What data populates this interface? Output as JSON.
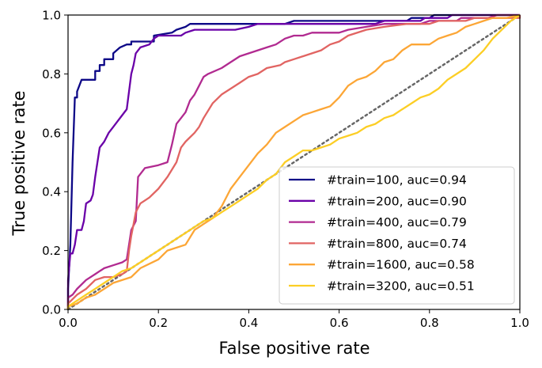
{
  "chart_data": {
    "type": "line",
    "title": "",
    "xlabel": "False positive rate",
    "ylabel": "True positive rate",
    "xlim": [
      0,
      1
    ],
    "ylim": [
      0,
      1
    ],
    "xticks": [
      "0.0",
      "0.2",
      "0.4",
      "0.6",
      "0.8",
      "1.0"
    ],
    "yticks": [
      "0.0",
      "0.2",
      "0.4",
      "0.6",
      "0.8",
      "1.0"
    ],
    "grid": false,
    "legend_position": "lower-right",
    "reference_line": {
      "name": "chance",
      "style": "dotted",
      "color": "#666666",
      "points": [
        [
          0,
          0
        ],
        [
          1,
          1
        ]
      ]
    },
    "series": [
      {
        "name": "#train=100, auc=0.94",
        "color": "#0d0887",
        "points": [
          [
            0,
            0
          ],
          [
            0,
            0.07
          ],
          [
            0.005,
            0.22
          ],
          [
            0.01,
            0.5
          ],
          [
            0.015,
            0.72
          ],
          [
            0.02,
            0.72
          ],
          [
            0.02,
            0.74
          ],
          [
            0.03,
            0.78
          ],
          [
            0.06,
            0.78
          ],
          [
            0.06,
            0.81
          ],
          [
            0.07,
            0.81
          ],
          [
            0.07,
            0.83
          ],
          [
            0.08,
            0.83
          ],
          [
            0.08,
            0.85
          ],
          [
            0.09,
            0.85
          ],
          [
            0.1,
            0.85
          ],
          [
            0.1,
            0.87
          ],
          [
            0.115,
            0.89
          ],
          [
            0.13,
            0.9
          ],
          [
            0.14,
            0.9
          ],
          [
            0.14,
            0.91
          ],
          [
            0.19,
            0.91
          ],
          [
            0.19,
            0.93
          ],
          [
            0.23,
            0.94
          ],
          [
            0.24,
            0.95
          ],
          [
            0.26,
            0.96
          ],
          [
            0.27,
            0.97
          ],
          [
            0.37,
            0.97
          ],
          [
            0.38,
            0.97
          ],
          [
            0.48,
            0.97
          ],
          [
            0.5,
            0.98
          ],
          [
            0.59,
            0.98
          ],
          [
            0.75,
            0.98
          ],
          [
            0.76,
            0.99
          ],
          [
            0.8,
            0.99
          ],
          [
            0.81,
            1
          ],
          [
            1,
            1
          ]
        ]
      },
      {
        "name": "#train=200, auc=0.90",
        "color": "#6a00a8",
        "points": [
          [
            0,
            0
          ],
          [
            0,
            0.1
          ],
          [
            0.005,
            0.19
          ],
          [
            0.01,
            0.19
          ],
          [
            0.015,
            0.22
          ],
          [
            0.02,
            0.27
          ],
          [
            0.03,
            0.27
          ],
          [
            0.035,
            0.3
          ],
          [
            0.04,
            0.36
          ],
          [
            0.05,
            0.37
          ],
          [
            0.055,
            0.39
          ],
          [
            0.06,
            0.45
          ],
          [
            0.07,
            0.55
          ],
          [
            0.08,
            0.57
          ],
          [
            0.09,
            0.6
          ],
          [
            0.1,
            0.62
          ],
          [
            0.11,
            0.64
          ],
          [
            0.12,
            0.66
          ],
          [
            0.13,
            0.68
          ],
          [
            0.14,
            0.8
          ],
          [
            0.145,
            0.83
          ],
          [
            0.15,
            0.87
          ],
          [
            0.16,
            0.89
          ],
          [
            0.18,
            0.9
          ],
          [
            0.19,
            0.92
          ],
          [
            0.2,
            0.93
          ],
          [
            0.25,
            0.93
          ],
          [
            0.26,
            0.94
          ],
          [
            0.28,
            0.95
          ],
          [
            0.37,
            0.95
          ],
          [
            0.4,
            0.96
          ],
          [
            0.42,
            0.97
          ],
          [
            0.57,
            0.97
          ],
          [
            0.68,
            0.97
          ],
          [
            0.7,
            0.98
          ],
          [
            0.78,
            0.98
          ],
          [
            0.79,
            0.99
          ],
          [
            0.84,
            0.99
          ],
          [
            0.85,
            1
          ],
          [
            1,
            1
          ]
        ]
      },
      {
        "name": "#train=400, auc=0.79",
        "color": "#b12a90",
        "points": [
          [
            0,
            0
          ],
          [
            0,
            0.04
          ],
          [
            0.01,
            0.05
          ],
          [
            0.02,
            0.07
          ],
          [
            0.04,
            0.1
          ],
          [
            0.06,
            0.12
          ],
          [
            0.07,
            0.13
          ],
          [
            0.08,
            0.14
          ],
          [
            0.1,
            0.15
          ],
          [
            0.12,
            0.16
          ],
          [
            0.13,
            0.17
          ],
          [
            0.14,
            0.27
          ],
          [
            0.15,
            0.3
          ],
          [
            0.155,
            0.45
          ],
          [
            0.17,
            0.48
          ],
          [
            0.2,
            0.49
          ],
          [
            0.22,
            0.5
          ],
          [
            0.23,
            0.56
          ],
          [
            0.24,
            0.63
          ],
          [
            0.25,
            0.65
          ],
          [
            0.26,
            0.67
          ],
          [
            0.27,
            0.71
          ],
          [
            0.28,
            0.73
          ],
          [
            0.29,
            0.76
          ],
          [
            0.3,
            0.79
          ],
          [
            0.31,
            0.8
          ],
          [
            0.34,
            0.82
          ],
          [
            0.36,
            0.84
          ],
          [
            0.38,
            0.86
          ],
          [
            0.4,
            0.87
          ],
          [
            0.42,
            0.88
          ],
          [
            0.44,
            0.89
          ],
          [
            0.46,
            0.9
          ],
          [
            0.48,
            0.92
          ],
          [
            0.5,
            0.93
          ],
          [
            0.52,
            0.93
          ],
          [
            0.54,
            0.94
          ],
          [
            0.6,
            0.94
          ],
          [
            0.62,
            0.95
          ],
          [
            0.66,
            0.96
          ],
          [
            0.7,
            0.97
          ],
          [
            0.78,
            0.97
          ],
          [
            0.8,
            0.98
          ],
          [
            0.86,
            0.98
          ],
          [
            0.87,
            0.99
          ],
          [
            0.93,
            0.99
          ],
          [
            0.95,
            1
          ],
          [
            1,
            1
          ]
        ]
      },
      {
        "name": "#train=800, auc=0.74",
        "color": "#e16462",
        "points": [
          [
            0,
            0
          ],
          [
            0,
            0.02
          ],
          [
            0.02,
            0.05
          ],
          [
            0.04,
            0.07
          ],
          [
            0.06,
            0.1
          ],
          [
            0.08,
            0.11
          ],
          [
            0.1,
            0.11
          ],
          [
            0.12,
            0.12
          ],
          [
            0.13,
            0.13
          ],
          [
            0.135,
            0.2
          ],
          [
            0.14,
            0.25
          ],
          [
            0.145,
            0.29
          ],
          [
            0.15,
            0.33
          ],
          [
            0.16,
            0.36
          ],
          [
            0.18,
            0.38
          ],
          [
            0.2,
            0.41
          ],
          [
            0.22,
            0.45
          ],
          [
            0.24,
            0.5
          ],
          [
            0.25,
            0.55
          ],
          [
            0.26,
            0.57
          ],
          [
            0.28,
            0.6
          ],
          [
            0.29,
            0.62
          ],
          [
            0.3,
            0.65
          ],
          [
            0.32,
            0.7
          ],
          [
            0.34,
            0.73
          ],
          [
            0.36,
            0.75
          ],
          [
            0.38,
            0.77
          ],
          [
            0.4,
            0.79
          ],
          [
            0.42,
            0.8
          ],
          [
            0.44,
            0.82
          ],
          [
            0.47,
            0.83
          ],
          [
            0.48,
            0.84
          ],
          [
            0.5,
            0.85
          ],
          [
            0.52,
            0.86
          ],
          [
            0.54,
            0.87
          ],
          [
            0.56,
            0.88
          ],
          [
            0.58,
            0.9
          ],
          [
            0.6,
            0.91
          ],
          [
            0.62,
            0.93
          ],
          [
            0.66,
            0.95
          ],
          [
            0.7,
            0.96
          ],
          [
            0.75,
            0.97
          ],
          [
            0.8,
            0.97
          ],
          [
            0.82,
            0.98
          ],
          [
            0.88,
            0.98
          ],
          [
            0.9,
            0.99
          ],
          [
            1,
            0.99
          ],
          [
            1,
            1
          ]
        ]
      },
      {
        "name": "#train=1600, auc=0.58",
        "color": "#fca636",
        "points": [
          [
            0,
            0
          ],
          [
            0,
            0.01
          ],
          [
            0.02,
            0.02
          ],
          [
            0.04,
            0.04
          ],
          [
            0.06,
            0.05
          ],
          [
            0.08,
            0.07
          ],
          [
            0.1,
            0.09
          ],
          [
            0.14,
            0.11
          ],
          [
            0.16,
            0.14
          ],
          [
            0.2,
            0.17
          ],
          [
            0.22,
            0.2
          ],
          [
            0.26,
            0.22
          ],
          [
            0.28,
            0.27
          ],
          [
            0.3,
            0.29
          ],
          [
            0.32,
            0.31
          ],
          [
            0.34,
            0.35
          ],
          [
            0.36,
            0.41
          ],
          [
            0.38,
            0.45
          ],
          [
            0.4,
            0.49
          ],
          [
            0.42,
            0.53
          ],
          [
            0.44,
            0.56
          ],
          [
            0.46,
            0.6
          ],
          [
            0.48,
            0.62
          ],
          [
            0.5,
            0.64
          ],
          [
            0.52,
            0.66
          ],
          [
            0.54,
            0.67
          ],
          [
            0.56,
            0.68
          ],
          [
            0.58,
            0.69
          ],
          [
            0.6,
            0.72
          ],
          [
            0.62,
            0.76
          ],
          [
            0.64,
            0.78
          ],
          [
            0.66,
            0.79
          ],
          [
            0.68,
            0.81
          ],
          [
            0.7,
            0.84
          ],
          [
            0.72,
            0.85
          ],
          [
            0.74,
            0.88
          ],
          [
            0.76,
            0.9
          ],
          [
            0.8,
            0.9
          ],
          [
            0.82,
            0.92
          ],
          [
            0.84,
            0.93
          ],
          [
            0.86,
            0.94
          ],
          [
            0.88,
            0.96
          ],
          [
            0.9,
            0.97
          ],
          [
            0.92,
            0.98
          ],
          [
            0.94,
            0.99
          ],
          [
            0.97,
            0.99
          ],
          [
            1,
            1
          ]
        ]
      },
      {
        "name": "#train=3200, auc=0.51",
        "color": "#fcce25",
        "points": [
          [
            0,
            0
          ],
          [
            0,
            0.01
          ],
          [
            0.02,
            0.03
          ],
          [
            0.04,
            0.05
          ],
          [
            0.06,
            0.07
          ],
          [
            0.08,
            0.09
          ],
          [
            0.1,
            0.11
          ],
          [
            0.12,
            0.13
          ],
          [
            0.14,
            0.14
          ],
          [
            0.16,
            0.16
          ],
          [
            0.18,
            0.18
          ],
          [
            0.2,
            0.2
          ],
          [
            0.22,
            0.22
          ],
          [
            0.24,
            0.24
          ],
          [
            0.26,
            0.26
          ],
          [
            0.28,
            0.28
          ],
          [
            0.3,
            0.3
          ],
          [
            0.32,
            0.31
          ],
          [
            0.34,
            0.33
          ],
          [
            0.36,
            0.35
          ],
          [
            0.38,
            0.37
          ],
          [
            0.4,
            0.39
          ],
          [
            0.42,
            0.41
          ],
          [
            0.44,
            0.44
          ],
          [
            0.46,
            0.46
          ],
          [
            0.48,
            0.5
          ],
          [
            0.5,
            0.52
          ],
          [
            0.52,
            0.54
          ],
          [
            0.54,
            0.54
          ],
          [
            0.56,
            0.55
          ],
          [
            0.58,
            0.56
          ],
          [
            0.6,
            0.58
          ],
          [
            0.62,
            0.59
          ],
          [
            0.64,
            0.6
          ],
          [
            0.66,
            0.62
          ],
          [
            0.68,
            0.63
          ],
          [
            0.7,
            0.65
          ],
          [
            0.72,
            0.66
          ],
          [
            0.74,
            0.68
          ],
          [
            0.76,
            0.7
          ],
          [
            0.78,
            0.72
          ],
          [
            0.8,
            0.73
          ],
          [
            0.82,
            0.75
          ],
          [
            0.84,
            0.78
          ],
          [
            0.86,
            0.8
          ],
          [
            0.88,
            0.82
          ],
          [
            0.9,
            0.85
          ],
          [
            0.92,
            0.88
          ],
          [
            0.94,
            0.92
          ],
          [
            0.96,
            0.95
          ],
          [
            0.98,
            0.98
          ],
          [
            1,
            1
          ]
        ]
      }
    ]
  }
}
